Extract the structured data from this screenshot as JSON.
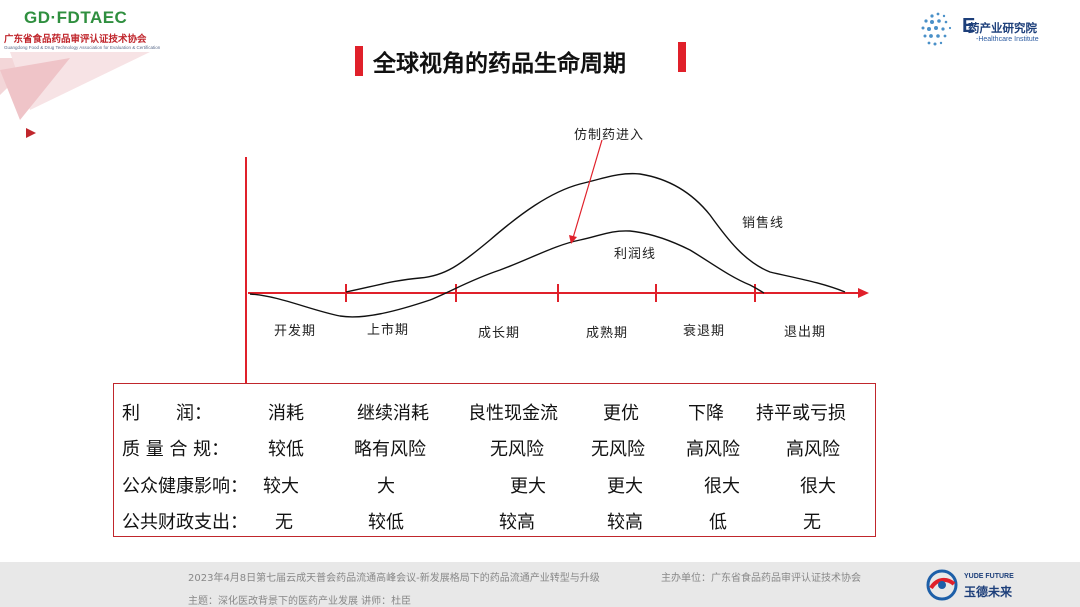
{
  "header": {
    "org_logo_title": "GD·FDTAEC",
    "org_logo_subtitle": "广东省食品药品审评认证技术协会",
    "org_logo_english": "Guangdong Food & Drug Technology Association for Evaluation & Certification",
    "institute_letter": "E",
    "institute_name": "药产业研究院",
    "institute_english": "-Healthcare Institute"
  },
  "slide": {
    "title": "全球视角的药品生命周期"
  },
  "chart_data": {
    "type": "line",
    "stages": [
      "开发期",
      "上市期",
      "成长期",
      "成熟期",
      "衰退期",
      "退出期"
    ],
    "series": [
      {
        "name": "销售线",
        "shape": "rises from 上市期 through 成长期, peaks in 成熟期, declines through 衰退期 to zero at 退出期"
      },
      {
        "name": "利润线",
        "shape": "negative during 开发期, crosses zero at 上市期, peaks in 成熟期, falls to zero near 衰退期/退出期 boundary"
      }
    ],
    "annotations": [
      "仿制药进入"
    ],
    "colors": {
      "axis": "#e0202a",
      "curves": "#111111"
    }
  },
  "table": {
    "rows": [
      {
        "label": "利　　润：",
        "values": [
          "消耗",
          "继续消耗",
          "良性现金流",
          "更优",
          "下降",
          "持平或亏损"
        ]
      },
      {
        "label": "质 量 合 规：",
        "values": [
          "较低",
          "略有风险",
          "无风险",
          "无风险",
          "高风险",
          "高风险"
        ]
      },
      {
        "label": "公众健康影响：",
        "values": [
          "较大",
          "大",
          "更大",
          "更大",
          "很大",
          "很大"
        ]
      },
      {
        "label": "公共财政支出：",
        "values": [
          "无",
          "较低",
          "较高",
          "较高",
          "低",
          "无"
        ]
      }
    ]
  },
  "footer": {
    "line1": "2023年4月8日第七届云成天普会药品流通高峰会议-新发展格局下的药品流通产业转型与升级",
    "organizer": "主办单位：广东省食品药品审评认证技术协会",
    "line2": "主题：深化医改背景下的医药产业发展  讲师：杜臣",
    "brand_en": "YUDE FUTURE",
    "brand_cn": "玉德未来"
  },
  "colors": {
    "accent": "#e0202a",
    "logo_green": "#2f8f3f",
    "institute_blue": "#1d3f7a",
    "footer_bg": "#e8e8e8"
  }
}
